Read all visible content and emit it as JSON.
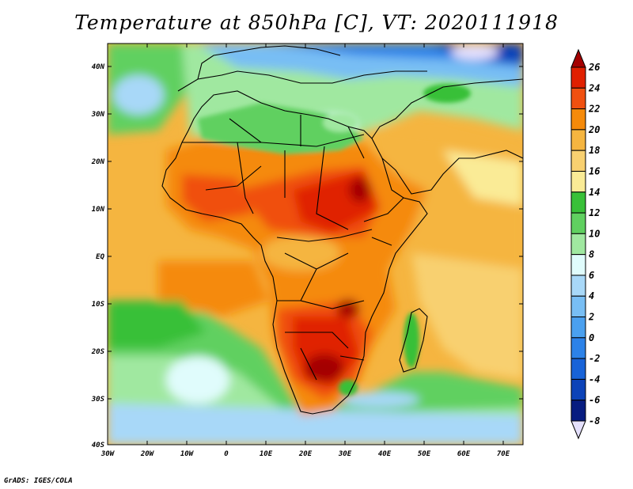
{
  "title": "Temperature at 850hPa [C], VT: 2020111918",
  "credit": "GrADS: IGES/COLA",
  "map": {
    "lon_labels": [
      "30W",
      "20W",
      "10W",
      "0",
      "10E",
      "20E",
      "30E",
      "40E",
      "50E",
      "60E",
      "70E"
    ],
    "lat_labels": [
      "40N",
      "30N",
      "20N",
      "10N",
      "EQ",
      "10S",
      "20S",
      "30S",
      "40S"
    ]
  },
  "colorbar": {
    "labels": [
      "26",
      "24",
      "22",
      "20",
      "18",
      "16",
      "14",
      "12",
      "10",
      "8",
      "6",
      "4",
      "2",
      "0",
      "-2",
      "-4",
      "-6",
      "-8"
    ],
    "colors": [
      "#a40000",
      "#e02000",
      "#f05010",
      "#f58a0a",
      "#f5b540",
      "#f8d070",
      "#faeb96",
      "#38c038",
      "#60d060",
      "#a0e8a0",
      "#e0fcfc",
      "#a8d8f8",
      "#78bef4",
      "#4aa0ef",
      "#2c82e8",
      "#1863d8",
      "#0c43b8",
      "#071c80",
      "#e4e0fc"
    ]
  }
}
